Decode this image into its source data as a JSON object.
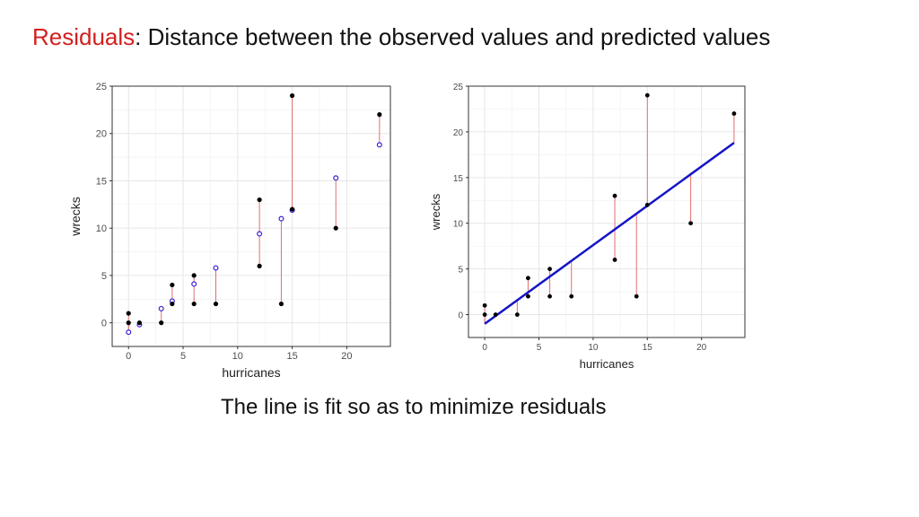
{
  "slide": {
    "title_highlight": "Residuals",
    "title_rest": ": Distance between the observed values and predicted values",
    "caption": "The line is fit so as to minimize residuals"
  },
  "colors": {
    "highlight": "#d21f1f",
    "observed_point": "#000000",
    "predicted_point": "#3b1fd6",
    "fit_line": "#1414c8",
    "residual_segment": "#e07070",
    "grid": "#e6e6e6"
  },
  "chart_data": [
    {
      "type": "scatter",
      "xlabel": "hurricanes",
      "ylabel": "wrecks",
      "xlim": [
        -1.5,
        24
      ],
      "ylim": [
        -2.5,
        25
      ],
      "xticks": [
        0,
        5,
        10,
        15,
        20
      ],
      "yticks": [
        0,
        5,
        10,
        15,
        20,
        25
      ],
      "grid": true,
      "observed": {
        "x": [
          0,
          0,
          1,
          3,
          4,
          4,
          6,
          6,
          8,
          12,
          12,
          14,
          15,
          15,
          19,
          23
        ],
        "y": [
          1,
          0,
          0,
          0,
          2,
          4,
          2,
          5,
          2,
          13,
          6,
          2,
          24,
          12,
          10,
          22
        ]
      },
      "predicted": {
        "x": [
          0,
          1,
          3,
          4,
          6,
          8,
          12,
          14,
          15,
          19,
          23
        ],
        "y": [
          -1,
          -0.2,
          1.5,
          2.3,
          4.1,
          5.8,
          9.4,
          11,
          11.9,
          15.3,
          18.8
        ]
      }
    },
    {
      "type": "scatter",
      "xlabel": "hurricanes",
      "ylabel": "wrecks",
      "xlim": [
        -1.5,
        24
      ],
      "ylim": [
        -2.5,
        25
      ],
      "xticks": [
        0,
        5,
        10,
        15,
        20
      ],
      "yticks": [
        0,
        5,
        10,
        15,
        20,
        25
      ],
      "grid": true,
      "observed": {
        "x": [
          0,
          0,
          1,
          3,
          4,
          4,
          6,
          6,
          8,
          12,
          12,
          14,
          15,
          15,
          19,
          23
        ],
        "y": [
          1,
          0,
          0,
          0,
          2,
          4,
          2,
          5,
          2,
          13,
          6,
          2,
          24,
          12,
          10,
          22
        ]
      },
      "fit_line": {
        "x": [
          0,
          23
        ],
        "y": [
          -1,
          18.8
        ]
      }
    }
  ]
}
